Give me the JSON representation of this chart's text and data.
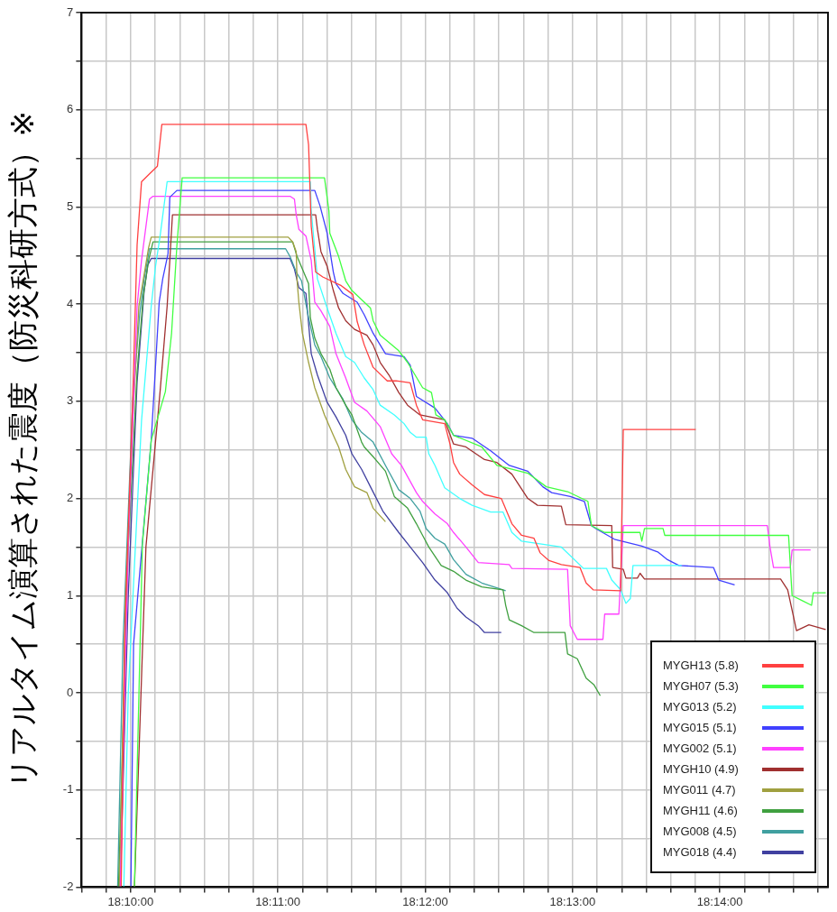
{
  "chart_data": {
    "type": "line",
    "ylabel": "リアルタイム演算された震度（防災科研方式）※",
    "legend": "bottom right",
    "grid": true,
    "xlim": [
      18.16111,
      18.24556
    ],
    "ylim": [
      -2,
      7
    ],
    "xticks": [
      {
        "value": 18.16111,
        "label": null
      },
      {
        "value": 18.163889,
        "label": null
      },
      {
        "value": 18.166667,
        "label": "18:10:00"
      },
      {
        "value": 18.169444,
        "label": null
      },
      {
        "value": 18.172222,
        "label": null
      },
      {
        "value": 18.175,
        "label": null
      },
      {
        "value": 18.177778,
        "label": null
      },
      {
        "value": 18.180556,
        "label": null
      },
      {
        "value": 18.183333,
        "label": "18:11:00"
      },
      {
        "value": 18.186111,
        "label": null
      },
      {
        "value": 18.188889,
        "label": null
      },
      {
        "value": 18.191667,
        "label": null
      },
      {
        "value": 18.194444,
        "label": null
      },
      {
        "value": 18.197222,
        "label": null
      },
      {
        "value": 18.2,
        "label": "18:12:00"
      },
      {
        "value": 18.202778,
        "label": null
      },
      {
        "value": 18.205556,
        "label": null
      },
      {
        "value": 18.208333,
        "label": null
      },
      {
        "value": 18.211111,
        "label": null
      },
      {
        "value": 18.213889,
        "label": null
      },
      {
        "value": 18.216667,
        "label": "18:13:00"
      },
      {
        "value": 18.219444,
        "label": null
      },
      {
        "value": 18.222222,
        "label": null
      },
      {
        "value": 18.225,
        "label": null
      },
      {
        "value": 18.227778,
        "label": null
      },
      {
        "value": 18.230556,
        "label": null
      },
      {
        "value": 18.233333,
        "label": "18:14:00"
      },
      {
        "value": 18.236111,
        "label": null
      },
      {
        "value": 18.238889,
        "label": null
      },
      {
        "value": 18.241667,
        "label": null
      },
      {
        "value": 18.244444,
        "label": null
      }
    ],
    "yticks": [
      -2,
      {
        "value": -1.5,
        "label": null
      },
      -1,
      {
        "value": -0.5,
        "label": null
      },
      0,
      {
        "value": 0.5,
        "label": null
      },
      1,
      {
        "value": 1.5,
        "label": null
      },
      2,
      {
        "value": 2.5,
        "label": null
      },
      3,
      {
        "value": 3.5,
        "label": null
      },
      4,
      {
        "value": 4.5,
        "label": null
      },
      5,
      {
        "value": 5.5,
        "label": null
      },
      6,
      {
        "value": 6.5,
        "label": null
      },
      7
    ],
    "series": [
      {
        "name": "MYGH13 (5.8)",
        "color": "#ff4040",
        "x": [
          18.1656,
          18.166,
          18.1669,
          18.1674,
          18.1679,
          18.1688,
          18.1697,
          18.1702,
          18.1865,
          18.1868,
          18.1871,
          18.1876,
          18.1884,
          18.1905,
          18.1918,
          18.1923,
          18.1931,
          18.1941,
          18.1957,
          18.1967,
          18.1983,
          18.199,
          18.1997,
          18.2022,
          18.2028,
          18.2032,
          18.2039,
          18.2053,
          18.2067,
          18.2086,
          18.2098,
          18.2109,
          18.2123,
          18.213,
          18.214,
          18.2154,
          18.2175,
          18.2182,
          18.219,
          18.2221,
          18.2224,
          18.2306
        ],
        "values": [
          -2,
          0.6,
          3.02,
          4.61,
          5.26,
          5.34,
          5.42,
          5.85,
          5.85,
          5.64,
          4.8,
          4.33,
          4.28,
          4.19,
          4.1,
          3.82,
          3.58,
          3.35,
          3.21,
          3.21,
          3.19,
          2.96,
          2.81,
          2.77,
          2.56,
          2.37,
          2.25,
          2.14,
          2.04,
          2.0,
          1.74,
          1.62,
          1.59,
          1.44,
          1.36,
          1.32,
          1.29,
          1.13,
          1.06,
          1.05,
          2.71,
          2.71
        ]
      },
      {
        "name": "MYGH07 (5.3)",
        "color": "#40ff40",
        "x": [
          18.1671,
          18.168,
          18.169,
          18.1706,
          18.1713,
          18.1719,
          18.1725,
          18.1886,
          18.1891,
          18.1892,
          18.1902,
          18.191,
          18.1917,
          18.1931,
          18.1938,
          18.1941,
          18.1949,
          18.197,
          18.198,
          18.1997,
          18.2007,
          18.2012,
          18.2022,
          18.2032,
          18.2064,
          18.2081,
          18.2116,
          18.2137,
          18.2161,
          18.2184,
          18.2188,
          18.2203,
          18.2243,
          18.2245,
          18.2248,
          18.2269,
          18.2271,
          18.2411,
          18.2415,
          18.2426,
          18.2437,
          18.2439,
          18.2453
        ],
        "values": [
          -2,
          1.53,
          2.6,
          3.1,
          3.7,
          4.6,
          5.3,
          5.3,
          4.96,
          4.73,
          4.49,
          4.24,
          4.14,
          4.02,
          3.96,
          3.83,
          3.68,
          3.52,
          3.4,
          3.14,
          3.09,
          2.86,
          2.81,
          2.65,
          2.53,
          2.34,
          2.26,
          2.12,
          2.07,
          1.97,
          1.72,
          1.65,
          1.65,
          1.56,
          1.69,
          1.69,
          1.62,
          1.62,
          1.0,
          0.95,
          0.9,
          1.03,
          1.03
        ]
      },
      {
        "name": "MYG013 (5.2)",
        "color": "#40ffff",
        "x": [
          18.1659,
          18.1664,
          18.1679,
          18.169,
          18.1695,
          18.17,
          18.1708,
          18.187,
          18.1871,
          18.1878,
          18.1889,
          18.1899,
          18.191,
          18.192,
          18.1931,
          18.1941,
          18.1949,
          18.1965,
          18.1976,
          18.1983,
          18.199,
          18.2001,
          18.2004,
          18.2011,
          18.2022,
          18.2039,
          18.2053,
          18.2074,
          18.2088,
          18.2098,
          18.2109,
          18.2154,
          18.2179,
          18.2205,
          18.2211,
          18.2221,
          18.2227,
          18.2232,
          18.2235,
          18.229
        ],
        "values": [
          -2,
          0,
          2.8,
          3.98,
          4.4,
          4.7,
          5.26,
          5.26,
          4.96,
          4.26,
          3.96,
          3.7,
          3.46,
          3.4,
          3.24,
          3.12,
          2.96,
          2.86,
          2.77,
          2.68,
          2.63,
          2.63,
          2.46,
          2.34,
          2.11,
          2.0,
          1.93,
          1.86,
          1.86,
          1.65,
          1.56,
          1.5,
          1.28,
          1.28,
          1.16,
          1.06,
          0.92,
          0.97,
          1.31,
          1.31
        ]
      },
      {
        "name": "MYG015 (5.1)",
        "color": "#4040ff",
        "x": [
          18.1667,
          18.167,
          18.169,
          18.1699,
          18.1703,
          18.1709,
          18.1711,
          18.1719,
          18.1875,
          18.1881,
          18.1889,
          18.1896,
          18.1899,
          18.1907,
          18.1923,
          18.1931,
          18.1941,
          18.1955,
          18.1976,
          18.1983,
          18.199,
          18.2011,
          18.2025,
          18.2032,
          18.2053,
          18.2074,
          18.2095,
          18.2116,
          18.2133,
          18.2143,
          18.2164,
          18.218,
          18.2188,
          18.2193,
          18.2214,
          18.2245,
          18.2263,
          18.2274,
          18.2287,
          18.2326,
          18.2332,
          18.235
        ],
        "values": [
          -2,
          0.5,
          2.6,
          4.02,
          4.26,
          4.52,
          5.1,
          5.17,
          5.17,
          5.01,
          4.73,
          4.33,
          4.21,
          4.11,
          4.02,
          3.89,
          3.7,
          3.49,
          3.46,
          3.37,
          3.05,
          2.93,
          2.77,
          2.65,
          2.62,
          2.49,
          2.34,
          2.28,
          2.12,
          2.06,
          2.02,
          1.97,
          1.72,
          1.69,
          1.58,
          1.51,
          1.45,
          1.37,
          1.31,
          1.29,
          1.16,
          1.11
        ]
      },
      {
        "name": "MYG002 (5.1)",
        "color": "#ff40ff",
        "x": [
          18.1655,
          18.1664,
          18.1674,
          18.1679,
          18.1688,
          18.1692,
          18.1847,
          18.1852,
          18.1854,
          18.1857,
          18.1865,
          18.1871,
          18.1875,
          18.1882,
          18.1892,
          18.1899,
          18.191,
          18.192,
          18.1934,
          18.1949,
          18.1962,
          18.1973,
          18.199,
          18.1997,
          18.2011,
          18.2025,
          18.2032,
          18.2046,
          18.206,
          18.2095,
          18.2098,
          18.2161,
          18.2164,
          18.2172,
          18.2201,
          18.2203,
          18.2219,
          18.2224,
          18.2387,
          18.239,
          18.2394,
          18.2413,
          18.2415,
          18.2436
        ],
        "values": [
          -2,
          1.53,
          3.98,
          4.45,
          5.08,
          5.11,
          5.11,
          5.08,
          4.92,
          4.77,
          4.7,
          4.45,
          4.02,
          3.93,
          3.77,
          3.49,
          3.24,
          2.99,
          2.9,
          2.74,
          2.46,
          2.34,
          2.06,
          1.97,
          1.84,
          1.74,
          1.65,
          1.5,
          1.34,
          1.32,
          1.28,
          1.27,
          0.69,
          0.55,
          0.55,
          0.81,
          0.81,
          1.72,
          1.72,
          1.5,
          1.29,
          1.29,
          1.47,
          1.47
        ]
      },
      {
        "name": "MYGH10 (4.9)",
        "color": "#a03030",
        "x": [
          18.1671,
          18.1684,
          18.17,
          18.1708,
          18.1711,
          18.1714,
          18.1876,
          18.1878,
          18.1882,
          18.1889,
          18.1896,
          18.1902,
          18.191,
          18.192,
          18.1934,
          18.1941,
          18.1949,
          18.1959,
          18.197,
          18.198,
          18.1994,
          18.2022,
          18.2027,
          18.2032,
          18.2046,
          18.2067,
          18.2081,
          18.2098,
          18.2116,
          18.2127,
          18.2154,
          18.2159,
          18.2211,
          18.2212,
          18.2224,
          18.2227,
          18.224,
          18.2243,
          18.2248,
          18.2402,
          18.241,
          18.2415,
          18.242,
          18.2434,
          18.2453
        ],
        "values": [
          -2,
          1.5,
          3.1,
          3.98,
          4.45,
          4.92,
          4.92,
          4.77,
          4.54,
          4.39,
          4.14,
          3.96,
          3.83,
          3.74,
          3.68,
          3.58,
          3.4,
          3.27,
          3.09,
          2.96,
          2.86,
          2.81,
          2.68,
          2.56,
          2.53,
          2.4,
          2.37,
          2.25,
          2.0,
          1.93,
          1.92,
          1.73,
          1.72,
          1.29,
          1.27,
          1.18,
          1.18,
          1.23,
          1.17,
          1.17,
          1.06,
          0.85,
          0.64,
          0.7,
          0.65
        ]
      },
      {
        "name": "MYG011 (4.7)",
        "color": "#a0a040",
        "x": [
          18.1654,
          18.1661,
          18.1669,
          18.1676,
          18.1687,
          18.169,
          18.1845,
          18.185,
          18.1854,
          18.1855,
          18.1857,
          18.1861,
          18.1868,
          18.1875,
          18.1886,
          18.1896,
          18.1902,
          18.191,
          18.192,
          18.1934,
          18.1941,
          18.1955
        ],
        "values": [
          -2,
          1.0,
          2.8,
          3.98,
          4.58,
          4.69,
          4.69,
          4.64,
          4.54,
          4.24,
          4.02,
          3.7,
          3.4,
          3.14,
          2.86,
          2.65,
          2.53,
          2.3,
          2.12,
          2.06,
          1.9,
          1.76
        ]
      },
      {
        "name": "MYGH11 (4.6)",
        "color": "#40a040",
        "x": [
          18.1653,
          18.1664,
          18.1674,
          18.1681,
          18.1687,
          18.1692,
          18.185,
          18.1855,
          18.1861,
          18.1868,
          18.187,
          18.1875,
          18.1882,
          18.1892,
          18.1899,
          18.191,
          18.1917,
          18.1928,
          18.1931,
          18.1941,
          18.1955,
          18.1965,
          18.198,
          18.199,
          18.1997,
          18.2004,
          18.2018,
          18.2032,
          18.2046,
          18.2064,
          18.2088,
          18.2091,
          18.2095,
          18.2109,
          18.2123,
          18.2158,
          18.2161,
          18.2172,
          18.2182,
          18.2191,
          18.2198
        ],
        "values": [
          -2,
          1.5,
          3.3,
          4.08,
          4.45,
          4.64,
          4.64,
          4.49,
          4.36,
          4.21,
          3.86,
          3.65,
          3.49,
          3.33,
          3.14,
          2.96,
          2.86,
          2.58,
          2.53,
          2.43,
          2.28,
          2.02,
          1.9,
          1.74,
          1.62,
          1.5,
          1.31,
          1.25,
          1.16,
          1.09,
          1.06,
          0.9,
          0.75,
          0.69,
          0.62,
          0.62,
          0.4,
          0.35,
          0.15,
          0.08,
          -0.03
        ]
      },
      {
        "name": "MYG008 (4.5)",
        "color": "#40a0a0",
        "x": [
          18.1652,
          18.1658,
          18.1669,
          18.1677,
          18.1682,
          18.1688,
          18.1842,
          18.1847,
          18.1854,
          18.186,
          18.1868,
          18.1875,
          18.1882,
          18.1892,
          18.1907,
          18.1917,
          18.1928,
          18.1941,
          18.1955,
          18.197,
          18.1983,
          18.1994,
          18.2001,
          18.2011,
          18.2022,
          18.2032,
          18.2046,
          18.2064,
          18.2081,
          18.2091
        ],
        "values": [
          -2,
          0.5,
          3.0,
          3.9,
          4.26,
          4.57,
          4.57,
          4.49,
          4.33,
          4.24,
          3.86,
          3.58,
          3.46,
          3.24,
          3.02,
          2.81,
          2.68,
          2.58,
          2.34,
          2.09,
          2.0,
          1.87,
          1.69,
          1.59,
          1.53,
          1.37,
          1.22,
          1.13,
          1.08,
          1.05
        ]
      },
      {
        "name": "MYG018 (4.4)",
        "color": "#4040a0",
        "x": [
          18.1655,
          18.1664,
          18.1674,
          18.1682,
          18.1686,
          18.169,
          18.1847,
          18.1852,
          18.1857,
          18.1865,
          18.1868,
          18.1871,
          18.1878,
          18.1889,
          18.1899,
          18.191,
          18.1917,
          18.1928,
          18.1938,
          18.1952,
          18.197,
          18.1983,
          18.1997,
          18.2011,
          18.2025,
          18.2036,
          18.2046,
          18.206,
          18.2067,
          18.2086
        ],
        "values": [
          -2,
          1.0,
          3.2,
          4.14,
          4.4,
          4.47,
          4.47,
          4.36,
          4.17,
          4.11,
          3.8,
          3.49,
          3.27,
          2.99,
          2.84,
          2.65,
          2.46,
          2.3,
          2.12,
          1.87,
          1.65,
          1.5,
          1.34,
          1.16,
          1.03,
          0.87,
          0.78,
          0.69,
          0.62,
          0.62
        ]
      }
    ]
  }
}
